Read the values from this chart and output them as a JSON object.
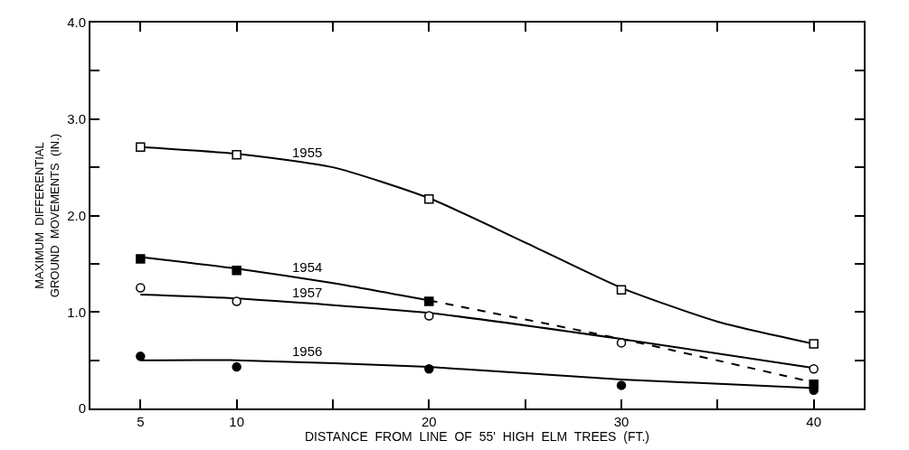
{
  "chart_data": {
    "type": "scatter",
    "xlabel": "DISTANCE  FROM  LINE  OF  55'  HIGH  ELM  TREES  (FT.)",
    "ylabel": "MAXIMUM  DIFFERENTIAL\nGROUND  MOVEMENTS  (IN.)",
    "xlim": [
      2.4,
      42.6
    ],
    "xticks": [
      5,
      10,
      {
        "value": 15,
        "label": null
      },
      20,
      {
        "value": 25,
        "label": null
      },
      30,
      {
        "value": 35,
        "label": null
      },
      40
    ],
    "ylim": [
      0,
      4
    ],
    "yticks": [
      0,
      {
        "value": 0.5,
        "label": null
      },
      {
        "value": 1,
        "label": "1.0"
      },
      {
        "value": 1.5,
        "label": null
      },
      {
        "value": 2,
        "label": "2.0"
      },
      {
        "value": 2.5,
        "label": null
      },
      {
        "value": 3,
        "label": "3.0"
      },
      {
        "value": 3.5,
        "label": null
      },
      {
        "value": 4,
        "label": "4.0"
      }
    ],
    "grid": false,
    "legend": false,
    "series": [
      {
        "marker": "square-open",
        "color": "#000000",
        "x": [
          5,
          10,
          20,
          30,
          40
        ],
        "values": [
          2.71,
          2.63,
          2.17,
          1.23,
          0.67
        ]
      },
      {
        "marker": "square",
        "color": "#000000",
        "x": [
          5,
          10,
          20,
          40
        ],
        "values": [
          1.55,
          1.43,
          1.11,
          0.25
        ]
      },
      {
        "marker": "circle-open",
        "color": "#000000",
        "x": [
          5,
          10,
          20,
          30,
          40
        ],
        "values": [
          1.25,
          1.11,
          0.96,
          0.68,
          0.41
        ]
      },
      {
        "marker": "circle",
        "color": "#000000",
        "x": [
          5,
          10,
          20,
          30,
          40
        ],
        "values": [
          0.54,
          0.43,
          0.41,
          0.24,
          0.19
        ]
      },
      {
        "name": "1955",
        "type": "line",
        "line_style": "solid",
        "color": "#000000",
        "x": [
          5,
          10,
          15,
          20,
          25,
          30,
          35,
          40
        ],
        "values": [
          2.71,
          2.64,
          2.5,
          2.18,
          1.72,
          1.25,
          0.9,
          0.67
        ]
      },
      {
        "name": "1954",
        "type": "line",
        "line_style": "solid",
        "color": "#000000",
        "x": [
          5,
          10,
          15,
          20
        ],
        "values": [
          1.57,
          1.45,
          1.3,
          1.12
        ]
      },
      {
        "type": "line",
        "line_style": "dashed",
        "color": "#000000",
        "x": [
          20,
          30,
          40
        ],
        "values": [
          1.12,
          0.72,
          0.27
        ]
      },
      {
        "name": "1957",
        "type": "line",
        "line_style": "solid",
        "color": "#000000",
        "x": [
          5,
          10,
          20,
          30,
          40
        ],
        "values": [
          1.18,
          1.14,
          0.99,
          0.72,
          0.42
        ]
      },
      {
        "name": "1956",
        "type": "line",
        "line_style": "solid",
        "color": "#000000",
        "x": [
          5,
          10,
          20,
          30,
          40
        ],
        "values": [
          0.5,
          0.5,
          0.43,
          0.3,
          0.21
        ]
      }
    ]
  }
}
